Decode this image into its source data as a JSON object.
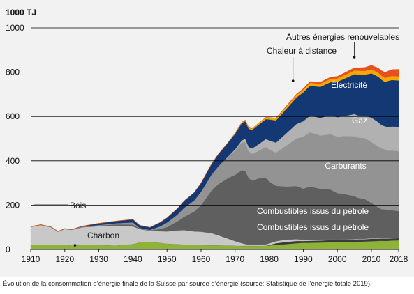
{
  "chart_data": {
    "type": "area",
    "stacked": true,
    "unit_label": "1000 TJ",
    "ylim": [
      0,
      1000
    ],
    "yticks": [
      0,
      200,
      400,
      600,
      800,
      1000
    ],
    "xlim": [
      1910,
      2018
    ],
    "xticks": [
      1910,
      1920,
      1930,
      1940,
      1950,
      1960,
      1970,
      1980,
      1990,
      2000,
      2010,
      2018
    ],
    "grid": true,
    "x": [
      1910,
      1913,
      1916,
      1918,
      1920,
      1922,
      1925,
      1930,
      1935,
      1940,
      1942,
      1945,
      1948,
      1950,
      1953,
      1955,
      1958,
      1960,
      1963,
      1965,
      1968,
      1970,
      1972,
      1973,
      1974,
      1975,
      1977,
      1979,
      1980,
      1982,
      1985,
      1988,
      1990,
      1992,
      1995,
      1998,
      2000,
      2002,
      2005,
      2006,
      2008,
      2010,
      2012,
      2013,
      2014,
      2015,
      2016,
      2018
    ],
    "series": [
      {
        "name": "Bois",
        "color": "#8fb339",
        "values": [
          22,
          22,
          20,
          20,
          22,
          18,
          20,
          20,
          18,
          24,
          32,
          34,
          30,
          26,
          24,
          22,
          21,
          20,
          19,
          19,
          18,
          17,
          16,
          16,
          16,
          16,
          16,
          17,
          18,
          20,
          24,
          28,
          30,
          30,
          31,
          32,
          32,
          33,
          34,
          35,
          36,
          37,
          38,
          39,
          38,
          39,
          40,
          41
        ]
      },
      {
        "name": "Combustibles issus du pétrole",
        "id": "liquid",
        "color": "#3a3a3a",
        "values": [
          0,
          0,
          0,
          0,
          0,
          0,
          0,
          0,
          0,
          0,
          0,
          0,
          0,
          0,
          0,
          0,
          0,
          0,
          0,
          0,
          0,
          0,
          0,
          0,
          0,
          0,
          0,
          0,
          2,
          8,
          10,
          10,
          8,
          9,
          9,
          10,
          10,
          10,
          10,
          11,
          10,
          11,
          10,
          10,
          11,
          10,
          10,
          10
        ]
      },
      {
        "name": "Charbon",
        "color": "#c8c8c8",
        "values": [
          80,
          88,
          80,
          60,
          70,
          70,
          80,
          85,
          90,
          80,
          60,
          50,
          52,
          55,
          62,
          65,
          60,
          60,
          55,
          45,
          30,
          20,
          12,
          8,
          6,
          5,
          5,
          6,
          7,
          9,
          10,
          8,
          6,
          5,
          4,
          3,
          2,
          2,
          2,
          2,
          2,
          2,
          2,
          2,
          2,
          2,
          2,
          2
        ]
      },
      {
        "name": "Combustibles issus du pétrole",
        "color": "#5f5f5f",
        "values": [
          2,
          2,
          2,
          2,
          2,
          2,
          2,
          3,
          5,
          8,
          3,
          2,
          10,
          20,
          40,
          60,
          90,
          120,
          190,
          230,
          275,
          300,
          330,
          330,
          300,
          290,
          300,
          300,
          280,
          250,
          240,
          240,
          230,
          240,
          230,
          225,
          210,
          205,
          195,
          185,
          180,
          160,
          140,
          130,
          130,
          125,
          125,
          120
        ]
      },
      {
        "name": "Carburants",
        "color": "#939393",
        "values": [
          0,
          0,
          0,
          0,
          0,
          0,
          1,
          2,
          5,
          10,
          2,
          2,
          12,
          20,
          30,
          40,
          50,
          60,
          72,
          80,
          98,
          110,
          125,
          130,
          120,
          120,
          125,
          140,
          145,
          150,
          185,
          215,
          235,
          245,
          240,
          250,
          255,
          262,
          270,
          272,
          275,
          275,
          275,
          275,
          270,
          270,
          270,
          270
        ]
      },
      {
        "name": "Gaz",
        "color": "#b1b1b1",
        "values": [
          0,
          0,
          0,
          0,
          0,
          0,
          0,
          0,
          0,
          0,
          0,
          0,
          0,
          0,
          0,
          0,
          0,
          0,
          0,
          0,
          0,
          5,
          10,
          15,
          20,
          25,
          30,
          35,
          40,
          45,
          55,
          65,
          70,
          75,
          80,
          85,
          88,
          90,
          100,
          100,
          100,
          110,
          110,
          105,
          105,
          105,
          108,
          110
        ]
      },
      {
        "name": "Électricité",
        "color": "#143874",
        "values": [
          0,
          0,
          0,
          0,
          0,
          0,
          2,
          8,
          10,
          14,
          12,
          12,
          18,
          22,
          28,
          32,
          36,
          40,
          48,
          55,
          62,
          70,
          78,
          80,
          82,
          84,
          88,
          90,
          95,
          100,
          110,
          120,
          130,
          135,
          140,
          150,
          160,
          168,
          180,
          185,
          185,
          200,
          205,
          205,
          200,
          210,
          210,
          210
        ]
      },
      {
        "name": "Chaleur à distance",
        "color": "#f6a800",
        "values": [
          0,
          0,
          0,
          0,
          0,
          0,
          0,
          0,
          0,
          0,
          0,
          0,
          0,
          0,
          0,
          0,
          0,
          0,
          0,
          0,
          2,
          3,
          4,
          5,
          5,
          6,
          7,
          8,
          8,
          9,
          10,
          11,
          12,
          13,
          14,
          15,
          15,
          16,
          17,
          17,
          18,
          18,
          18,
          18,
          18,
          18,
          18,
          18
        ]
      },
      {
        "name": "Autres énergies renouvelables",
        "color": "#e8501f",
        "values": [
          0,
          0,
          0,
          0,
          0,
          0,
          0,
          0,
          0,
          0,
          0,
          0,
          0,
          0,
          0,
          0,
          0,
          0,
          0,
          0,
          0,
          0,
          0,
          0,
          0,
          0,
          0,
          0,
          1,
          2,
          3,
          4,
          5,
          6,
          7,
          8,
          9,
          10,
          12,
          13,
          15,
          18,
          21,
          23,
          25,
          27,
          29,
          32
        ]
      }
    ]
  },
  "caption": "Évolution de la consommation d’énergie finale de la Suisse par source d’énergie (source: Statistique de l’énergie totale 2019)."
}
